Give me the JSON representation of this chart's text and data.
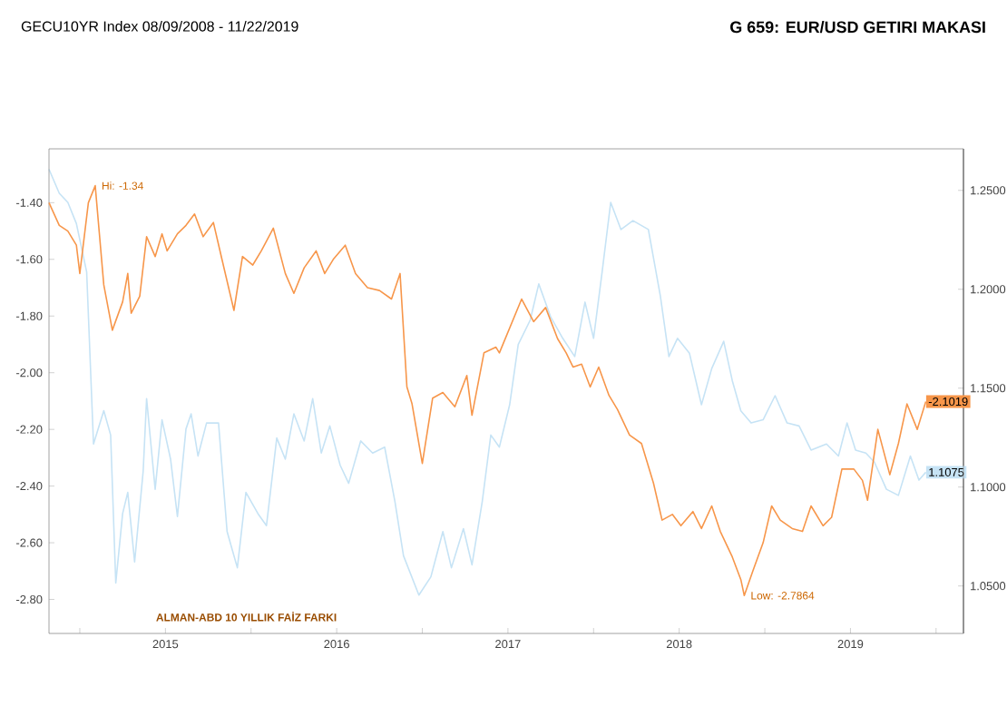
{
  "chart_data": {
    "type": "line",
    "title": "G 659: EUR/USD GETIRI MAKASI",
    "subtitle": "GECU10YR Index 08/09/2008 - 11/22/2019",
    "xlim": [
      2014.82,
      2020.16
    ],
    "xticks": [
      {
        "value": 2015,
        "label": null
      },
      {
        "value": 2015.5,
        "label": "2015"
      },
      {
        "value": 2016,
        "label": null
      },
      {
        "value": 2016.5,
        "label": "2016"
      },
      {
        "value": 2017,
        "label": null
      },
      {
        "value": 2017.5,
        "label": "2017"
      },
      {
        "value": 2018,
        "label": null
      },
      {
        "value": 2018.5,
        "label": "2018"
      },
      {
        "value": 2019,
        "label": null
      },
      {
        "value": 2019.5,
        "label": "2019"
      },
      {
        "value": 2020,
        "label": null
      }
    ],
    "ylim": [
      -2.92,
      -1.21
    ],
    "yticks": [
      {
        "value": -2.8,
        "label": "-2.80"
      },
      {
        "value": -2.6,
        "label": "-2.60"
      },
      {
        "value": -2.4,
        "label": "-2.40"
      },
      {
        "value": -2.2,
        "label": "-2.20"
      },
      {
        "value": -2.0,
        "label": "-2.00"
      },
      {
        "value": -1.8,
        "label": "-1.80"
      },
      {
        "value": -1.6,
        "label": "-1.60"
      },
      {
        "value": -1.4,
        "label": "-1.40"
      }
    ],
    "y2lim": [
      1.026,
      1.271
    ],
    "y2ticks": [
      {
        "value": 1.05,
        "label": "1.0500"
      },
      {
        "value": 1.1,
        "label": "1.1000"
      },
      {
        "value": 1.15,
        "label": "1.1500"
      },
      {
        "value": 1.2,
        "label": "1.2000"
      },
      {
        "value": 1.25,
        "label": "1.2500"
      }
    ],
    "grid": false,
    "marker": "none",
    "line_style": "solid",
    "series": [
      {
        "color": "#c6e3f5",
        "axis": "y2",
        "x": [
          2014.82,
          2014.88,
          2014.93,
          2014.98,
          2015.04,
          2015.08,
          2015.14,
          2015.18,
          2015.21,
          2015.25,
          2015.28,
          2015.32,
          2015.37,
          2015.39,
          2015.44,
          2015.48,
          2015.53,
          2015.57,
          2015.62,
          2015.65,
          2015.69,
          2015.74,
          2015.81,
          2015.86,
          2015.92,
          2015.97,
          2016.04,
          2016.09,
          2016.15,
          2016.2,
          2016.25,
          2016.31,
          2016.36,
          2016.41,
          2016.46,
          2016.52,
          2016.57,
          2016.64,
          2016.71,
          2016.78,
          2016.84,
          2016.89,
          2016.98,
          2017.05,
          2017.12,
          2017.17,
          2017.24,
          2017.29,
          2017.35,
          2017.4,
          2017.45,
          2017.51,
          2017.56,
          2017.63,
          2017.68,
          2017.75,
          2017.82,
          2017.89,
          2017.95,
          2018.0,
          2018.05,
          2018.1,
          2018.16,
          2018.23,
          2018.32,
          2018.39,
          2018.44,
          2018.49,
          2018.56,
          2018.63,
          2018.69,
          2018.76,
          2018.81,
          2018.86,
          2018.92,
          2018.99,
          2019.06,
          2019.13,
          2019.2,
          2019.27,
          2019.36,
          2019.43,
          2019.48,
          2019.53,
          2019.59,
          2019.64,
          2019.71,
          2019.78,
          2019.85,
          2019.9,
          2019.94
        ],
        "values": [
          1.2607,
          1.2485,
          1.2439,
          1.2332,
          1.2088,
          1.1218,
          1.1386,
          1.1263,
          1.0515,
          1.0866,
          1.0973,
          1.0622,
          1.108,
          1.1447,
          1.0989,
          1.134,
          1.1141,
          1.0851,
          1.1294,
          1.137,
          1.1157,
          1.1324,
          1.1324,
          1.0775,
          1.0592,
          1.0973,
          1.0866,
          1.0805,
          1.1248,
          1.1141,
          1.137,
          1.1233,
          1.1447,
          1.1172,
          1.1309,
          1.1111,
          1.1019,
          1.1233,
          1.1172,
          1.1202,
          1.0927,
          1.0653,
          1.0454,
          1.0546,
          1.0775,
          1.0592,
          1.079,
          1.0607,
          1.0927,
          1.1263,
          1.1202,
          1.1416,
          1.1721,
          1.1844,
          1.2027,
          1.1859,
          1.1752,
          1.166,
          1.1935,
          1.1752,
          1.2088,
          1.2439,
          1.2302,
          1.2347,
          1.2302,
          1.1966,
          1.166,
          1.1752,
          1.1676,
          1.1416,
          1.1599,
          1.1737,
          1.1538,
          1.1385,
          1.1324,
          1.134,
          1.1462,
          1.1324,
          1.1309,
          1.1187,
          1.1218,
          1.1157,
          1.1324,
          1.1187,
          1.1172,
          1.1126,
          1.0989,
          1.0958,
          1.1157,
          1.1035,
          1.1075
        ],
        "value_labels": [
          null,
          null,
          null,
          null,
          null,
          null,
          null,
          null,
          null,
          null,
          null,
          null,
          null,
          null,
          null,
          null,
          null,
          null,
          null,
          null,
          null,
          null,
          null,
          null,
          null,
          null,
          null,
          null,
          null,
          null,
          null,
          null,
          null,
          null,
          null,
          null,
          null,
          null,
          null,
          null,
          null,
          null,
          null,
          null,
          null,
          null,
          null,
          null,
          null,
          null,
          null,
          null,
          null,
          null,
          null,
          null,
          null,
          null,
          null,
          null,
          null,
          null,
          null,
          null,
          null,
          null,
          null,
          null,
          null,
          null,
          null,
          null,
          null,
          null,
          null,
          null,
          null,
          null,
          null,
          null,
          null,
          null,
          null,
          null,
          null,
          null,
          null,
          null,
          null,
          null,
          "1.1075"
        ]
      },
      {
        "color": "#f7964a",
        "axis": "y",
        "x": [
          2014.82,
          2014.88,
          2014.93,
          2014.98,
          2015.0,
          2015.05,
          2015.09,
          2015.14,
          2015.19,
          2015.25,
          2015.28,
          2015.3,
          2015.35,
          2015.39,
          2015.44,
          2015.48,
          2015.51,
          2015.57,
          2015.62,
          2015.67,
          2015.72,
          2015.78,
          2015.83,
          2015.9,
          2015.95,
          2016.01,
          2016.06,
          2016.13,
          2016.2,
          2016.25,
          2016.31,
          2016.38,
          2016.43,
          2016.48,
          2016.55,
          2016.61,
          2016.68,
          2016.75,
          2016.82,
          2016.87,
          2016.91,
          2016.94,
          2017.0,
          2017.06,
          2017.12,
          2017.19,
          2017.26,
          2017.29,
          2017.36,
          2017.43,
          2017.45,
          2017.58,
          2017.65,
          2017.72,
          2017.79,
          2017.84,
          2017.88,
          2017.93,
          2017.98,
          2018.03,
          2018.09,
          2018.14,
          2018.21,
          2018.28,
          2018.35,
          2018.4,
          2018.46,
          2018.51,
          2018.58,
          2018.63,
          2018.69,
          2018.74,
          2018.81,
          2018.86,
          2018.88,
          2018.93,
          2018.99,
          2019.04,
          2019.09,
          2019.16,
          2019.22,
          2019.27,
          2019.34,
          2019.39,
          2019.45,
          2019.52,
          2019.57,
          2019.6,
          2019.66,
          2019.73,
          2019.78,
          2019.83,
          2019.89,
          2019.94
        ],
        "values": [
          -1.4,
          -1.48,
          -1.5,
          -1.55,
          -1.65,
          -1.4,
          -1.34,
          -1.69,
          -1.85,
          -1.75,
          -1.65,
          -1.79,
          -1.73,
          -1.52,
          -1.59,
          -1.51,
          -1.57,
          -1.51,
          -1.48,
          -1.44,
          -1.52,
          -1.47,
          -1.6,
          -1.78,
          -1.59,
          -1.62,
          -1.57,
          -1.49,
          -1.65,
          -1.72,
          -1.63,
          -1.57,
          -1.65,
          -1.6,
          -1.55,
          -1.65,
          -1.7,
          -1.71,
          -1.74,
          -1.65,
          -2.05,
          -2.11,
          -2.32,
          -2.09,
          -2.07,
          -2.12,
          -2.01,
          -2.15,
          -1.93,
          -1.91,
          -1.93,
          -1.74,
          -1.82,
          -1.77,
          -1.88,
          -1.93,
          -1.98,
          -1.97,
          -2.05,
          -1.98,
          -2.08,
          -2.13,
          -2.22,
          -2.25,
          -2.39,
          -2.52,
          -2.5,
          -2.54,
          -2.49,
          -2.55,
          -2.47,
          -2.56,
          -2.65,
          -2.73,
          -2.7864,
          -2.7,
          -2.6,
          -2.47,
          -2.52,
          -2.55,
          -2.56,
          -2.47,
          -2.54,
          -2.51,
          -2.34,
          -2.34,
          -2.38,
          -2.45,
          -2.2,
          -2.36,
          -2.25,
          -2.11,
          -2.2,
          -2.1019
        ],
        "value_labels": [
          null,
          null,
          null,
          null,
          null,
          null,
          null,
          null,
          null,
          null,
          null,
          null,
          null,
          null,
          null,
          null,
          null,
          null,
          null,
          null,
          null,
          null,
          null,
          null,
          null,
          null,
          null,
          null,
          null,
          null,
          null,
          null,
          null,
          null,
          null,
          null,
          null,
          null,
          null,
          null,
          null,
          null,
          null,
          null,
          null,
          null,
          null,
          null,
          null,
          null,
          null,
          null,
          null,
          null,
          null,
          null,
          null,
          null,
          null,
          null,
          null,
          null,
          null,
          null,
          null,
          null,
          null,
          null,
          null,
          null,
          null,
          null,
          null,
          null,
          null,
          null,
          null,
          null,
          null,
          null,
          null,
          null,
          null,
          null,
          null,
          null,
          null,
          null,
          null,
          null,
          null,
          null,
          null,
          "-2.1019"
        ]
      }
    ],
    "annotations": [
      {
        "text": "Hi: -1.34",
        "x": 2015.09,
        "y": -1.34
      },
      {
        "text": "Low: -2.7864",
        "x": 2018.88,
        "y": -2.7864
      },
      "ALMAN-ABD 10 YILLIK FAİZ FARKI"
    ]
  }
}
